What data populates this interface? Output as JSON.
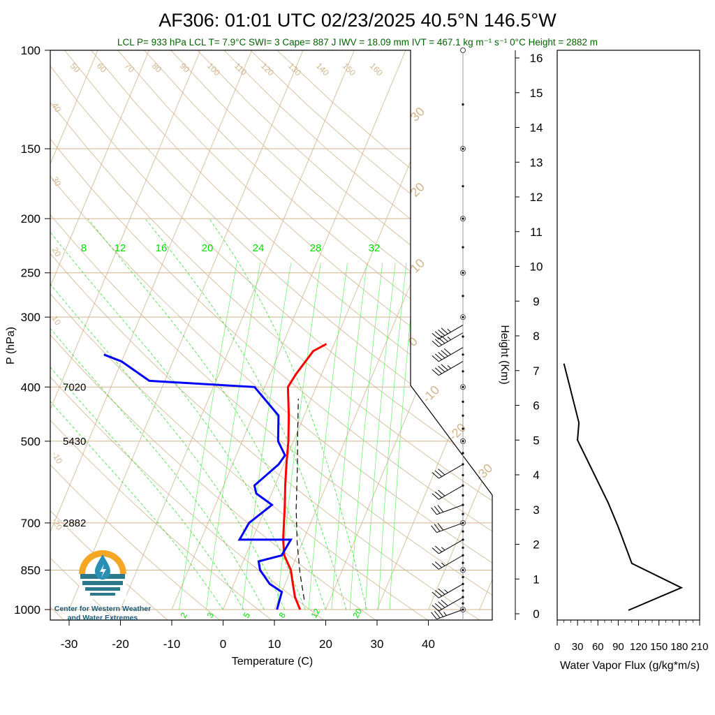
{
  "title": "AF306: 01:01 UTC 02/23/2025  40.5°N 146.5°W",
  "subtitle": "LCL P= 933 hPa  LCL T= 7.9°C  SWI= 3  Cape= 887 J  IWV = 18.09 mm  IVT = 467.1 kg m⁻¹ s⁻¹  0°C Height = 2882 m",
  "logo": {
    "line1": "Center for Western Weather",
    "line2": "and Water Extremes"
  },
  "colors": {
    "temperature": "#ff0000",
    "dewpoint": "#0000ff",
    "parcel": "#000000",
    "dry_adiabat": "#d2b48c",
    "mixing_ratio": "#00dd00",
    "isotherm": "#d2b48c",
    "flux": "#000000"
  },
  "chart_data": [
    {
      "type": "line",
      "name": "skew-t",
      "xlabel": "Temperature (C)",
      "ylabel": "P (hPa)",
      "xlim": [
        -34,
        52
      ],
      "ylim": [
        1000,
        100
      ],
      "y_scale": "log",
      "pressure_ticks": [
        100,
        150,
        200,
        250,
        300,
        400,
        500,
        700,
        850,
        1000
      ],
      "temperature_ticks": [
        -30,
        -20,
        -10,
        0,
        10,
        20,
        30,
        40
      ],
      "isotherm_labels": [
        "30",
        "20",
        "10",
        "0",
        "-10",
        "-20",
        "-30"
      ],
      "dry_adiabat_labels": [
        "50",
        "60",
        "70",
        "80",
        "90",
        "100",
        "110",
        "120",
        "130",
        "140",
        "150",
        "160"
      ],
      "moist_labels_left": [
        "40",
        "30",
        "20",
        "10",
        "-10",
        "-20"
      ],
      "mixing_ratio_labels_top": [
        "8",
        "12",
        "16",
        "20",
        "24",
        "28",
        "32"
      ],
      "mixing_ratio_labels_bottom": [
        "2",
        "3",
        "5",
        "8",
        "12",
        "20"
      ],
      "height_annotations": [
        {
          "p": 400,
          "label": "7020"
        },
        {
          "p": 500,
          "label": "5430"
        },
        {
          "p": 700,
          "label": "2882"
        }
      ],
      "series": [
        {
          "role": "temperature",
          "points": [
            [
              15,
              1000
            ],
            [
              13,
              950
            ],
            [
              11.5,
              900
            ],
            [
              10,
              850
            ],
            [
              7.5,
              800
            ],
            [
              6,
              750
            ],
            [
              4.8,
              700
            ],
            [
              3.5,
              650
            ],
            [
              2,
              600
            ],
            [
              0.5,
              550
            ],
            [
              -1,
              500
            ],
            [
              -3,
              450
            ],
            [
              -5.5,
              400
            ],
            [
              -5,
              380
            ],
            [
              -3.5,
              345
            ],
            [
              -1.5,
              335
            ]
          ]
        },
        {
          "role": "dewpoint",
          "points": [
            [
              10.5,
              1000
            ],
            [
              10,
              930
            ],
            [
              7,
              900
            ],
            [
              4,
              850
            ],
            [
              3,
              820
            ],
            [
              7,
              800
            ],
            [
              7.5,
              750
            ],
            [
              -2.5,
              750
            ],
            [
              -2,
              700
            ],
            [
              1,
              650
            ],
            [
              -3,
              620
            ],
            [
              -4,
              600
            ],
            [
              -1,
              550
            ],
            [
              -0.5,
              530
            ],
            [
              -3,
              500
            ],
            [
              -5,
              450
            ],
            [
              -12,
              400
            ],
            [
              -33,
              390
            ],
            [
              -40,
              360
            ],
            [
              -44,
              350
            ]
          ]
        },
        {
          "role": "parcel",
          "points": [
            [
              15,
              960
            ],
            [
              12,
              860
            ],
            [
              9,
              760
            ],
            [
              6,
              660
            ],
            [
              3,
              560
            ],
            [
              0,
              480
            ],
            [
              -2.5,
              420
            ]
          ]
        }
      ],
      "wind_barbs": [
        {
          "p": 1000,
          "dir": 250,
          "kt": 35
        },
        {
          "p": 950,
          "dir": 240,
          "kt": 40
        },
        {
          "p": 900,
          "dir": 240,
          "kt": 35
        },
        {
          "p": 800,
          "dir": 240,
          "kt": 25
        },
        {
          "p": 750,
          "dir": 240,
          "kt": 25
        },
        {
          "p": 700,
          "dir": 250,
          "kt": 30
        },
        {
          "p": 650,
          "dir": 250,
          "kt": 30
        },
        {
          "p": 600,
          "dir": 240,
          "kt": 30
        },
        {
          "p": 550,
          "dir": 240,
          "kt": 30
        },
        {
          "p": 360,
          "dir": 240,
          "kt": 45
        },
        {
          "p": 340,
          "dir": 240,
          "kt": 50
        },
        {
          "p": 320,
          "dir": 240,
          "kt": 45
        },
        {
          "p": 310,
          "dir": 240,
          "kt": 45
        }
      ]
    },
    {
      "type": "line",
      "name": "water-vapor-flux",
      "xlabel": "Water Vapor Flux (g/kg*m/s)",
      "ylabel": "Height (Km)",
      "xlim": [
        0,
        210
      ],
      "ylim": [
        0,
        16
      ],
      "x_ticks": [
        0,
        30,
        60,
        90,
        120,
        150,
        180,
        210
      ],
      "y_ticks": [
        0,
        1,
        2,
        3,
        4,
        5,
        6,
        7,
        8,
        9,
        10,
        11,
        12,
        13,
        14,
        15,
        16
      ],
      "series": [
        {
          "points": [
            [
              105,
              0.1
            ],
            [
              183,
              0.75
            ],
            [
              110,
              1.45
            ],
            [
              90,
              2.5
            ],
            [
              75,
              3.2
            ],
            [
              30,
              5.0
            ],
            [
              32,
              5.5
            ],
            [
              10,
              7.2
            ]
          ]
        }
      ]
    }
  ]
}
